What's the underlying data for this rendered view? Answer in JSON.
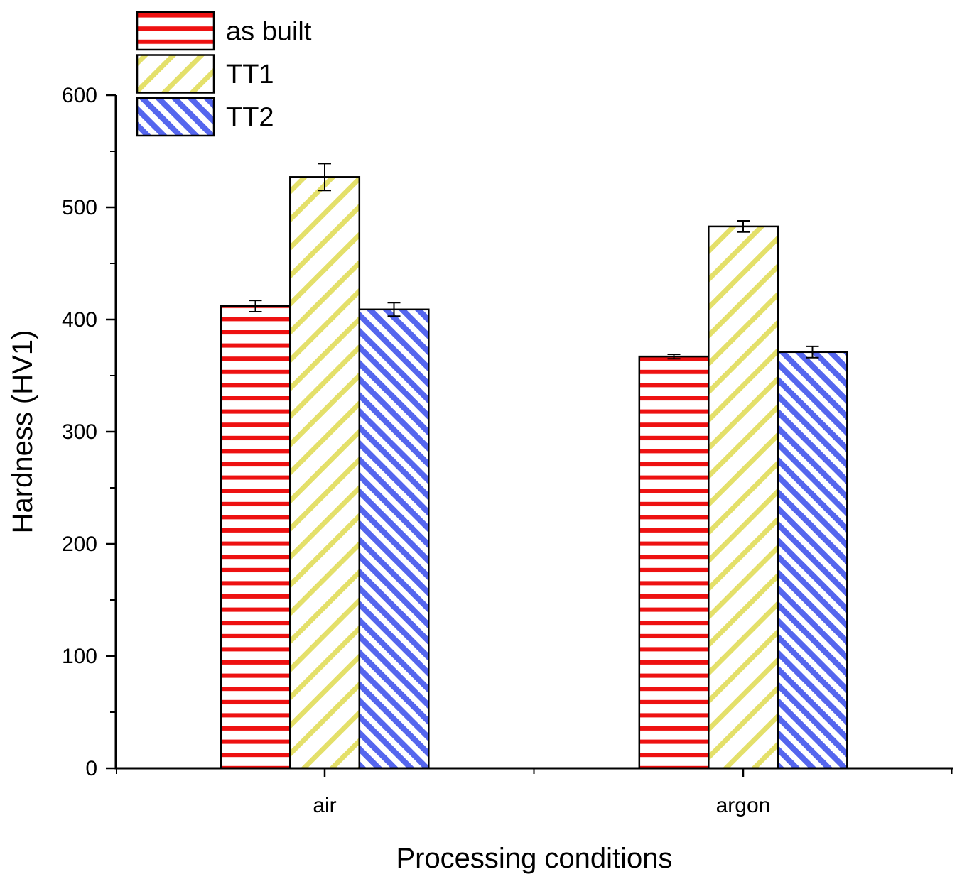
{
  "chart_data": {
    "type": "bar",
    "title": "",
    "xlabel": "Processing conditions",
    "ylabel": "Hardness (HV1)",
    "ylim": [
      0,
      600
    ],
    "yticks": [
      0,
      100,
      200,
      300,
      400,
      500,
      600
    ],
    "categories": [
      "air",
      "argon"
    ],
    "series": [
      {
        "name": "as built",
        "values": [
          412,
          367
        ],
        "errors": [
          5,
          2
        ],
        "color": "#ee1111",
        "pattern": "horizontal"
      },
      {
        "name": "TT1",
        "values": [
          527,
          483
        ],
        "errors": [
          12,
          5
        ],
        "color": "#e4e06a",
        "pattern": "diagonal-up"
      },
      {
        "name": "TT2",
        "values": [
          409,
          371
        ],
        "errors": [
          6,
          5
        ],
        "color": "#5566ee",
        "pattern": "diagonal-down"
      }
    ],
    "legend_position": "top-left",
    "grid": false
  }
}
